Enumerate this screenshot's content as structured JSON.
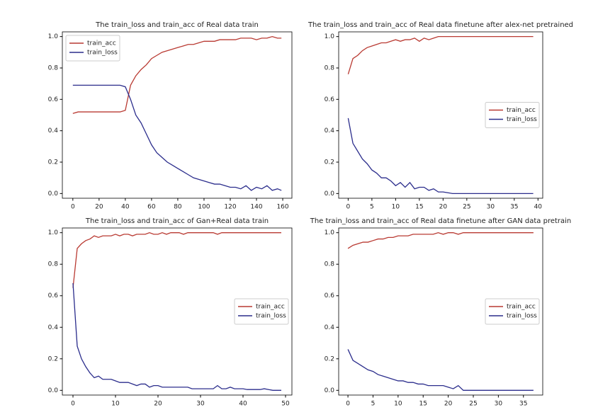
{
  "chart_data": [
    {
      "type": "line",
      "title": "The train_loss and train_acc of Real data train",
      "legend": "upper left",
      "x": [
        0,
        4,
        8,
        12,
        16,
        20,
        24,
        28,
        32,
        36,
        40,
        44,
        48,
        52,
        56,
        60,
        64,
        68,
        72,
        76,
        80,
        84,
        88,
        92,
        96,
        100,
        104,
        108,
        112,
        116,
        120,
        124,
        128,
        132,
        136,
        140,
        144,
        148,
        152,
        156,
        159
      ],
      "series": [
        {
          "name": "train_acc",
          "color": "#b93a32",
          "values": [
            0.51,
            0.52,
            0.52,
            0.52,
            0.52,
            0.52,
            0.52,
            0.52,
            0.52,
            0.52,
            0.53,
            0.69,
            0.75,
            0.79,
            0.82,
            0.86,
            0.88,
            0.9,
            0.91,
            0.92,
            0.93,
            0.94,
            0.95,
            0.95,
            0.96,
            0.97,
            0.97,
            0.97,
            0.98,
            0.98,
            0.98,
            0.98,
            0.99,
            0.99,
            0.99,
            0.98,
            0.99,
            0.99,
            1.0,
            0.99,
            0.99
          ]
        },
        {
          "name": "train_loss",
          "color": "#2b2d8c",
          "values": [
            0.69,
            0.69,
            0.69,
            0.69,
            0.69,
            0.69,
            0.69,
            0.69,
            0.69,
            0.69,
            0.68,
            0.6,
            0.5,
            0.45,
            0.38,
            0.31,
            0.26,
            0.23,
            0.2,
            0.18,
            0.16,
            0.14,
            0.12,
            0.1,
            0.09,
            0.08,
            0.07,
            0.06,
            0.06,
            0.05,
            0.04,
            0.04,
            0.03,
            0.05,
            0.02,
            0.04,
            0.03,
            0.05,
            0.02,
            0.03,
            0.02
          ]
        }
      ],
      "xlim": [
        -8,
        167
      ],
      "xticks": [
        0,
        20,
        40,
        60,
        80,
        100,
        120,
        140,
        160
      ],
      "ylim": [
        -0.03,
        1.03
      ],
      "yticks": [
        {
          "value": 0,
          "label": "0.0"
        },
        0.2,
        0.4,
        0.6,
        0.8,
        {
          "value": 1,
          "label": "1.0"
        }
      ]
    },
    {
      "type": "line",
      "title": "The train_loss and train_acc of Real data finetune after alex-net pretrained",
      "legend": "center right",
      "x": [
        0,
        1,
        2,
        3,
        4,
        5,
        6,
        7,
        8,
        9,
        10,
        11,
        12,
        13,
        14,
        15,
        16,
        17,
        18,
        19,
        20,
        21,
        22,
        23,
        24,
        25,
        26,
        27,
        28,
        29,
        30,
        31,
        32,
        33,
        34,
        35,
        36,
        37,
        38,
        39
      ],
      "series": [
        {
          "name": "train_acc",
          "color": "#b93a32",
          "values": [
            0.76,
            0.86,
            0.88,
            0.91,
            0.93,
            0.94,
            0.95,
            0.96,
            0.96,
            0.97,
            0.98,
            0.97,
            0.98,
            0.98,
            0.99,
            0.97,
            0.99,
            0.98,
            0.99,
            1.0,
            1.0,
            1.0,
            1.0,
            1.0,
            1.0,
            1.0,
            1.0,
            1.0,
            1.0,
            1.0,
            1.0,
            1.0,
            1.0,
            1.0,
            1.0,
            1.0,
            1.0,
            1.0,
            1.0,
            1.0
          ]
        },
        {
          "name": "train_loss",
          "color": "#2b2d8c",
          "values": [
            0.48,
            0.32,
            0.27,
            0.22,
            0.19,
            0.15,
            0.13,
            0.1,
            0.1,
            0.08,
            0.05,
            0.07,
            0.04,
            0.07,
            0.03,
            0.04,
            0.04,
            0.02,
            0.03,
            0.01,
            0.01,
            0.005,
            0,
            0,
            0,
            0,
            0,
            0,
            0,
            0,
            0,
            0,
            0,
            0,
            0,
            0,
            0,
            0,
            0,
            0
          ]
        }
      ],
      "xlim": [
        -2,
        41
      ],
      "xticks": [
        0,
        5,
        10,
        15,
        20,
        25,
        30,
        35,
        40
      ],
      "ylim": [
        -0.03,
        1.03
      ],
      "yticks": [
        {
          "value": 0,
          "label": "0.0"
        },
        0.2,
        0.4,
        0.6,
        0.8,
        {
          "value": 1,
          "label": "1.0"
        }
      ]
    },
    {
      "type": "line",
      "title": "The train_loss and train_acc of Gan+Real data train",
      "legend": "center right",
      "x": [
        0,
        1,
        2,
        3,
        4,
        5,
        6,
        7,
        8,
        9,
        10,
        11,
        12,
        13,
        14,
        15,
        16,
        17,
        18,
        19,
        20,
        21,
        22,
        23,
        24,
        25,
        26,
        27,
        28,
        29,
        30,
        31,
        32,
        33,
        34,
        35,
        36,
        37,
        38,
        39,
        40,
        41,
        42,
        43,
        44,
        45,
        46,
        47,
        48,
        49
      ],
      "series": [
        {
          "name": "train_acc",
          "color": "#b93a32",
          "values": [
            0.65,
            0.9,
            0.93,
            0.95,
            0.96,
            0.98,
            0.97,
            0.98,
            0.98,
            0.98,
            0.99,
            0.98,
            0.99,
            0.99,
            0.98,
            0.99,
            0.99,
            0.99,
            1.0,
            0.99,
            0.99,
            1.0,
            0.99,
            1.0,
            1.0,
            1.0,
            0.99,
            1.0,
            1.0,
            1.0,
            1.0,
            1.0,
            1.0,
            1.0,
            0.99,
            1.0,
            1.0,
            1.0,
            1.0,
            1.0,
            1.0,
            1.0,
            1.0,
            1.0,
            1.0,
            1.0,
            1.0,
            1.0,
            1.0,
            1.0
          ]
        },
        {
          "name": "train_loss",
          "color": "#2b2d8c",
          "values": [
            0.68,
            0.28,
            0.2,
            0.15,
            0.11,
            0.08,
            0.09,
            0.07,
            0.07,
            0.07,
            0.06,
            0.05,
            0.05,
            0.05,
            0.04,
            0.03,
            0.04,
            0.04,
            0.02,
            0.03,
            0.03,
            0.02,
            0.02,
            0.02,
            0.02,
            0.02,
            0.02,
            0.02,
            0.01,
            0.01,
            0.01,
            0.01,
            0.01,
            0.01,
            0.03,
            0.01,
            0.01,
            0.02,
            0.01,
            0.01,
            0.01,
            0.005,
            0.005,
            0.005,
            0.005,
            0.01,
            0.005,
            0,
            0,
            0
          ]
        }
      ],
      "xlim": [
        -2.5,
        51.5
      ],
      "xticks": [
        0,
        10,
        20,
        30,
        40,
        50
      ],
      "ylim": [
        -0.03,
        1.03
      ],
      "yticks": [
        {
          "value": 0,
          "label": "0.0"
        },
        0.2,
        0.4,
        0.6,
        0.8,
        {
          "value": 1,
          "label": "1.0"
        }
      ]
    },
    {
      "type": "line",
      "title": "The train_loss and train_acc of Real data finetune after GAN data pretrain",
      "legend": "center right",
      "x": [
        0,
        1,
        2,
        3,
        4,
        5,
        6,
        7,
        8,
        9,
        10,
        11,
        12,
        13,
        14,
        15,
        16,
        17,
        18,
        19,
        20,
        21,
        22,
        23,
        24,
        25,
        26,
        27,
        28,
        29,
        30,
        31,
        32,
        33,
        34,
        35,
        36,
        37
      ],
      "series": [
        {
          "name": "train_acc",
          "color": "#b93a32",
          "values": [
            0.9,
            0.92,
            0.93,
            0.94,
            0.94,
            0.95,
            0.96,
            0.96,
            0.97,
            0.97,
            0.98,
            0.98,
            0.98,
            0.99,
            0.99,
            0.99,
            0.99,
            0.99,
            1.0,
            0.99,
            1.0,
            1.0,
            0.99,
            1.0,
            1.0,
            1.0,
            1.0,
            1.0,
            1.0,
            1.0,
            1.0,
            1.0,
            1.0,
            1.0,
            1.0,
            1.0,
            1.0,
            1.0
          ]
        },
        {
          "name": "train_loss",
          "color": "#2b2d8c",
          "values": [
            0.26,
            0.19,
            0.17,
            0.15,
            0.13,
            0.12,
            0.1,
            0.09,
            0.08,
            0.07,
            0.06,
            0.06,
            0.05,
            0.05,
            0.04,
            0.04,
            0.03,
            0.03,
            0.03,
            0.03,
            0.02,
            0.01,
            0.03,
            0,
            0,
            0,
            0,
            0,
            0,
            0,
            0,
            0,
            0,
            0,
            0,
            0,
            0,
            0
          ]
        }
      ],
      "xlim": [
        -1.85,
        38.85
      ],
      "xticks": [
        0,
        5,
        10,
        15,
        20,
        25,
        30,
        35
      ],
      "ylim": [
        -0.03,
        1.03
      ],
      "yticks": [
        {
          "value": 0,
          "label": "0.0"
        },
        0.2,
        0.4,
        0.6,
        0.8,
        {
          "value": 1,
          "label": "1.0"
        }
      ]
    }
  ]
}
